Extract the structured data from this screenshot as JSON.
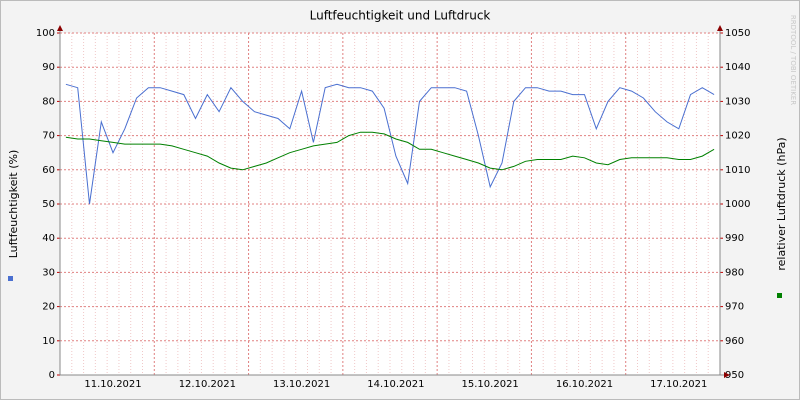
{
  "chart_data": {
    "type": "line",
    "title": "Luftfeuchtigkeit und Luftdruck",
    "ylabel": "Luftfeuchtigkeit (%)",
    "y2label": "relativer Luftdruck (hPa)",
    "watermark": "RRDTOOL / TOBI OETIKER",
    "categories": [
      null,
      null,
      null,
      null,
      "11.10.2021",
      null,
      null,
      null,
      null,
      null,
      null,
      null,
      "12.10.2021",
      null,
      null,
      null,
      null,
      null,
      null,
      null,
      "13.10.2021",
      null,
      null,
      null,
      null,
      null,
      null,
      null,
      "14.10.2021",
      null,
      null,
      null,
      null,
      null,
      null,
      null,
      "15.10.2021",
      null,
      null,
      null,
      null,
      null,
      null,
      null,
      "16.10.2021",
      null,
      null,
      null,
      null,
      null,
      null,
      null,
      "17.10.2021",
      null,
      null,
      null
    ],
    "series": [
      {
        "color": "#4a6fd0",
        "axis": "y",
        "values": [
          85,
          84,
          50,
          74,
          65,
          72,
          81,
          84,
          84,
          83,
          82,
          75,
          82,
          77,
          84,
          80,
          77,
          76,
          75,
          72,
          83,
          68,
          84,
          85,
          84,
          84,
          83,
          78,
          64,
          56,
          80,
          84,
          84,
          84,
          83,
          70,
          55,
          62,
          80,
          84,
          84,
          83,
          83,
          82,
          82,
          72,
          80,
          84,
          83,
          81,
          77,
          74,
          72,
          82,
          84,
          82
        ]
      },
      {
        "color": "#008000",
        "axis": "y2",
        "values": [
          1019.5,
          1019,
          1019,
          1018.5,
          1018,
          1017.5,
          1017.5,
          1017.5,
          1017.5,
          1017,
          1016,
          1015,
          1014,
          1012,
          1010.5,
          1010,
          1011,
          1012,
          1013.5,
          1015,
          1016,
          1017,
          1017.5,
          1018,
          1020,
          1021,
          1021,
          1020.5,
          1019,
          1018,
          1016,
          1016,
          1015,
          1014,
          1013,
          1012,
          1010.5,
          1010,
          1011,
          1012.5,
          1013,
          1013,
          1013,
          1014,
          1013.5,
          1012,
          1011.5,
          1013,
          1013.5,
          1013.5,
          1013.5,
          1013.5,
          1013,
          1013,
          1014,
          1016
        ]
      }
    ],
    "ylim": [
      0,
      100
    ],
    "yticks": [
      0,
      10,
      20,
      30,
      40,
      50,
      60,
      70,
      80,
      90,
      100
    ],
    "y2lim": [
      950,
      1050
    ],
    "y2ticks": [
      950,
      960,
      970,
      980,
      990,
      1000,
      1010,
      1020,
      1030,
      1040,
      1050
    ],
    "grid": true
  }
}
